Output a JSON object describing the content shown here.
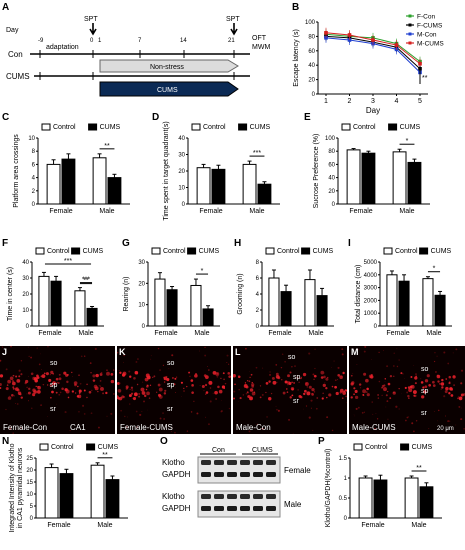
{
  "panel_letters": {
    "A": "A",
    "B": "B",
    "C": "C",
    "D": "D",
    "E": "E",
    "F": "F",
    "G": "G",
    "H": "H",
    "I": "I",
    "J": "J",
    "K": "K",
    "L": "L",
    "M": "M",
    "N": "N",
    "O": "O",
    "P": "P"
  },
  "timeline": {
    "day_label": "Day",
    "days": [
      "-9",
      "0",
      "1",
      "7",
      "14",
      "21"
    ],
    "adaptation": "adaptation",
    "spt": "SPT",
    "spt2": "SPT",
    "oft": "OFT",
    "mwm": "MWM",
    "con": "Con",
    "cums": "CUMS",
    "nonstress": "Non-stress",
    "cums_bar": "CUMS"
  },
  "legend": {
    "control": "Control",
    "cums": "CUMS"
  },
  "groups": [
    "Female",
    "Male"
  ],
  "colors": {
    "control": "#ffffff",
    "cums": "#000000",
    "fcon": "#2ca02c",
    "fcums": "#000000",
    "mcon": "#1f3fd0",
    "mcums": "#d62020"
  },
  "chart_data": [
    {
      "id": "B",
      "type": "line",
      "ylabel": "Escape latency (s)",
      "xlabel": "Day",
      "x": [
        1,
        2,
        3,
        4,
        5
      ],
      "ylim": [
        0,
        100
      ],
      "yticks": [
        0,
        20,
        40,
        60,
        80,
        100
      ],
      "series": [
        {
          "name": "F-Con",
          "values": [
            83,
            80,
            78,
            70,
            45
          ]
        },
        {
          "name": "F-CUMS",
          "values": [
            80,
            78,
            72,
            65,
            35
          ]
        },
        {
          "name": "M-Con",
          "values": [
            78,
            75,
            70,
            62,
            30
          ]
        },
        {
          "name": "M-CUMS",
          "values": [
            85,
            82,
            75,
            68,
            42
          ]
        }
      ],
      "annotation": "**"
    },
    {
      "id": "C",
      "type": "bar",
      "ylabel": "Platform area crossings",
      "ylim": [
        0,
        10
      ],
      "yticks": [
        0,
        2,
        4,
        6,
        8,
        10
      ],
      "control": [
        6.0,
        7.0
      ],
      "cums": [
        6.8,
        4.0
      ],
      "err_control": [
        0.7,
        0.6
      ],
      "err_cums": [
        0.8,
        0.5
      ],
      "sig": "**"
    },
    {
      "id": "D",
      "type": "bar",
      "ylabel": "Time spent in target quadrant(s)",
      "ylim": [
        0,
        40
      ],
      "yticks": [
        0,
        10,
        20,
        30,
        40
      ],
      "control": [
        22,
        24
      ],
      "cums": [
        21,
        12
      ],
      "err_control": [
        2,
        2
      ],
      "err_cums": [
        2.5,
        1.5
      ],
      "sig": "***"
    },
    {
      "id": "E",
      "type": "bar",
      "ylabel": "Sucrose Preference (%)",
      "ylim": [
        0,
        100
      ],
      "yticks": [
        0,
        20,
        40,
        60,
        80,
        100
      ],
      "control": [
        82,
        79
      ],
      "cums": [
        77,
        63
      ],
      "err_control": [
        2,
        4
      ],
      "err_cums": [
        3,
        5
      ],
      "sig": "*"
    },
    {
      "id": "F",
      "type": "bar",
      "ylabel": "Time in center (s)",
      "ylim": [
        0,
        40
      ],
      "yticks": [
        0,
        10,
        20,
        30,
        40
      ],
      "control": [
        31,
        22
      ],
      "cums": [
        28,
        11
      ],
      "err_control": [
        2.5,
        2
      ],
      "err_cums": [
        3,
        1.2
      ],
      "sig": "***",
      "sig2": "**"
    },
    {
      "id": "G",
      "type": "bar",
      "ylabel": "Rearing (n)",
      "ylim": [
        0,
        30
      ],
      "yticks": [
        0,
        10,
        20,
        30
      ],
      "control": [
        22,
        19
      ],
      "cums": [
        17,
        8
      ],
      "err_control": [
        3,
        3
      ],
      "err_cums": [
        1.5,
        1.5
      ],
      "sig": "*"
    },
    {
      "id": "H",
      "type": "bar",
      "ylabel": "Grooming (n)",
      "ylim": [
        0,
        8
      ],
      "yticks": [
        0,
        2,
        4,
        6,
        8
      ],
      "control": [
        6.0,
        5.8
      ],
      "cums": [
        4.3,
        3.8
      ],
      "err_control": [
        1.0,
        1.2
      ],
      "err_cums": [
        0.8,
        0.9
      ],
      "sig": ""
    },
    {
      "id": "I",
      "type": "bar",
      "ylabel": "Total distance (cm)",
      "ylim": [
        0,
        5000
      ],
      "yticks": [
        0,
        1000,
        2000,
        3000,
        4000,
        5000
      ],
      "control": [
        4000,
        3700
      ],
      "cums": [
        3500,
        2400
      ],
      "err_control": [
        300,
        150
      ],
      "err_cums": [
        500,
        300
      ],
      "sig": "*"
    },
    {
      "id": "N",
      "type": "bar",
      "ylabel": "Integrated Intensity of Klotho in CA1 pyramidal neurons",
      "ylim": [
        0,
        25
      ],
      "yticks": [
        0,
        5,
        10,
        15,
        20,
        25
      ],
      "control": [
        21,
        22
      ],
      "cums": [
        18.5,
        16
      ],
      "err_control": [
        1.5,
        1
      ],
      "err_cums": [
        1.8,
        1.5
      ],
      "sig": "**"
    },
    {
      "id": "P",
      "type": "bar",
      "ylabel": "Klotho/GAPDH(%control)",
      "ylim": [
        0,
        1.5
      ],
      "yticks": [
        0,
        0.5,
        1.0,
        1.5
      ],
      "control": [
        1.0,
        1.0
      ],
      "cums": [
        0.95,
        0.78
      ],
      "err_control": [
        0.05,
        0.05
      ],
      "err_cums": [
        0.12,
        0.1
      ],
      "sig": "**"
    }
  ],
  "micrographs": [
    {
      "letter": "J",
      "tag": "Female-Con",
      "extra": "CA1",
      "so": "so",
      "sp": "sp",
      "sr": "sr"
    },
    {
      "letter": "K",
      "tag": "Female-CUMS",
      "so": "so",
      "sp": "sp",
      "sr": "sr"
    },
    {
      "letter": "L",
      "tag": "Male-Con",
      "so": "so",
      "sp": "sp",
      "sr": "sr"
    },
    {
      "letter": "M",
      "tag": "Male-CUMS",
      "so": "so",
      "sp": "sp",
      "sr": "sr",
      "scale": "20 μm"
    }
  ],
  "western": {
    "con": "Con",
    "cums": "CUMS",
    "klotho": "Klotho",
    "gapdh": "GAPDH",
    "female": "Female",
    "male": "Male"
  }
}
